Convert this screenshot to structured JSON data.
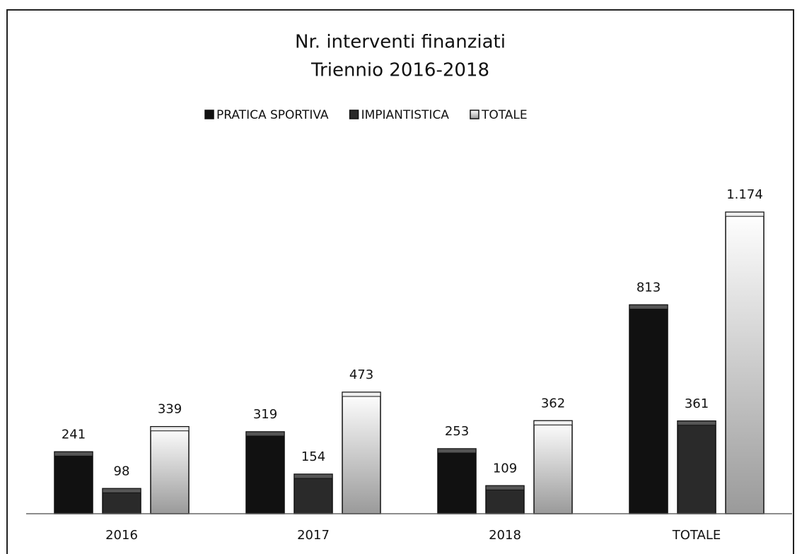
{
  "chart_data": {
    "type": "bar",
    "title": [
      "Nr. interventi finanziati",
      "Triennio 2016-2018"
    ],
    "categories": [
      "2016",
      "2017",
      "2018",
      "TOTALE"
    ],
    "series": [
      {
        "name": "PRATICA SPORTIVA",
        "color": "#111111",
        "values": [
          241,
          319,
          253,
          813
        ]
      },
      {
        "name": "IMPIANTISTICA",
        "color": "#2a2a2a",
        "values": [
          98,
          154,
          109,
          361
        ]
      },
      {
        "name": "TOTALE",
        "color": "#9a9a9a",
        "values": [
          339,
          473,
          362,
          1174
        ],
        "value_labels": [
          "339",
          "473",
          "362",
          "1.174"
        ]
      }
    ],
    "ylim": [
      0,
      1400
    ],
    "legend": "top"
  }
}
